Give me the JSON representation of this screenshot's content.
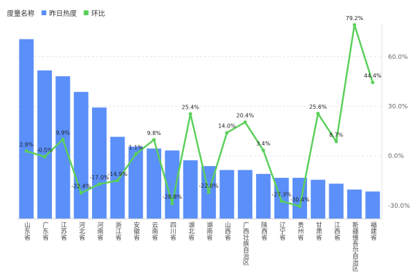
{
  "legend": {
    "title": "度量名称",
    "items": [
      {
        "label": "昨日热度",
        "color": "#5b8ff9"
      },
      {
        "label": "环比",
        "color": "#5ad05a"
      }
    ]
  },
  "chart_data": {
    "type": "bar+line",
    "categories": [
      "山东省",
      "广东省",
      "江苏省",
      "河北省",
      "河南省",
      "浙江省",
      "安徽省",
      "云南省",
      "四川省",
      "湖北省",
      "湖南省",
      "山西省",
      "广西壮族自治区",
      "陕西省",
      "辽宁省",
      "贵州省",
      "甘肃省",
      "江西省",
      "新疆维吾尔自治区",
      "福建省"
    ],
    "series": [
      {
        "name": "昨日热度",
        "type": "bar",
        "color": "#5b8ff9",
        "values": [
          92,
          76,
          73,
          65,
          57,
          42,
          37,
          36,
          35,
          30,
          27,
          25,
          25,
          23,
          21,
          21,
          20,
          18,
          15,
          14
        ]
      },
      {
        "name": "环比",
        "type": "line",
        "color": "#5ad05a",
        "values": [
          2.9,
          -0.5,
          9.9,
          -22.4,
          -17.0,
          -14.9,
          1.1,
          9.8,
          -28.8,
          25.4,
          -22.0,
          14.0,
          20.4,
          3.4,
          -27.3,
          -30.4,
          25.6,
          8.7,
          79.2,
          44.4
        ],
        "labels": [
          "2.9%",
          "-0.5%",
          "9.9%",
          "-22.4%",
          "-17.0%",
          "-14.9%",
          "1.1%",
          "9.8%",
          "-28.8%",
          "25.4%",
          "-22.0%",
          "14.0%",
          "20.4%",
          "3.4%",
          "-27.3%",
          "-30.4%",
          "25.6%",
          "8.7%",
          "79.2%",
          "44.4%"
        ]
      }
    ],
    "y_bar_range": [
      0,
      100
    ],
    "y_right": {
      "range": [
        -38,
        80
      ],
      "ticks": [
        -30,
        0,
        30,
        60
      ],
      "tick_labels": [
        "-30.0%",
        "0.0%",
        "30.0%",
        "60.0%"
      ]
    },
    "grid": true,
    "legend_position": "top-left"
  }
}
